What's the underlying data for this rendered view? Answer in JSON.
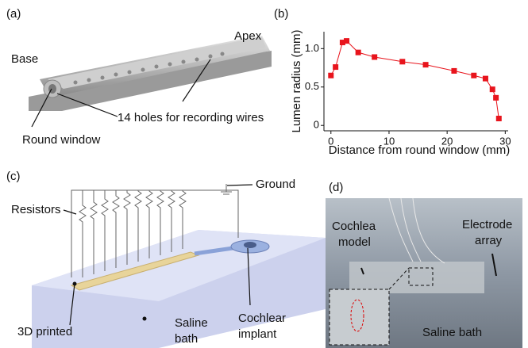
{
  "panels": {
    "a": {
      "label": "(a)",
      "base": "Base",
      "apex": "Apex",
      "holes": "14 holes for recording wires",
      "round_window": "Round window"
    },
    "c": {
      "label": "(c)",
      "resistors": "Resistors",
      "ground": "Ground",
      "printed": "3D printed",
      "saline": [
        "Saline",
        "bath"
      ],
      "implant": [
        "Cochlear",
        "implant"
      ]
    },
    "d": {
      "label": "(d)",
      "cochlea": [
        "Cochlea",
        "model"
      ],
      "electrode": [
        "Electrode",
        "array"
      ],
      "saline": "Saline bath"
    }
  },
  "chart_data": {
    "type": "line",
    "label": "(b)",
    "x_label": "Distance from round window (mm)",
    "y_label": "Lumen radius (mm)",
    "x": [
      0,
      0.8,
      2.0,
      2.7,
      4.7,
      7.5,
      12.3,
      16.3,
      21.2,
      24.6,
      26.6,
      27.8,
      28.4,
      28.9
    ],
    "values": [
      0.65,
      0.76,
      1.08,
      1.1,
      0.95,
      0.89,
      0.83,
      0.79,
      0.71,
      0.65,
      0.61,
      0.47,
      0.36,
      0.09
    ],
    "color": "#e8141c",
    "xlim": [
      -1.2,
      30.5
    ],
    "ylim": [
      -0.07,
      1.22
    ],
    "xticks": [
      0,
      10,
      20,
      30
    ],
    "yticks": [
      0,
      0.5,
      {
        "value": 1,
        "label": "1.0"
      }
    ]
  }
}
